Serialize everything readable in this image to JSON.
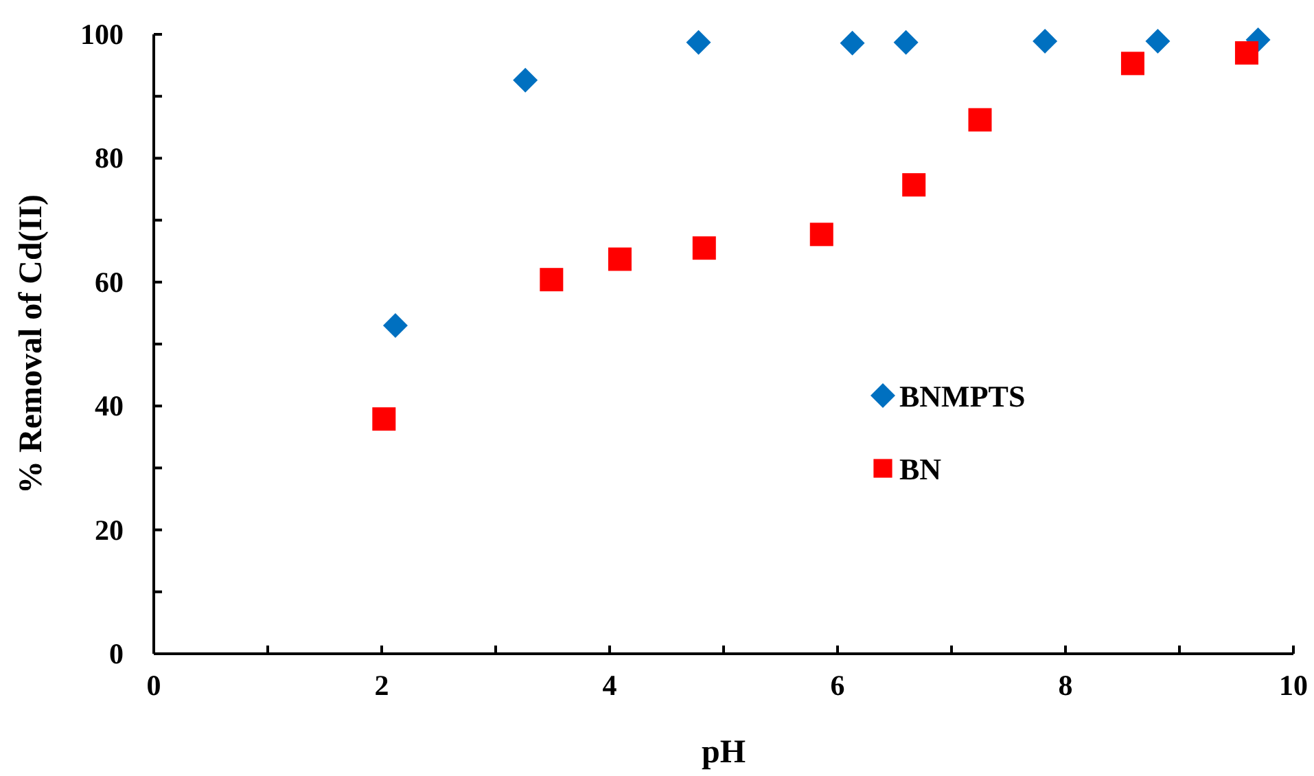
{
  "chart_data": {
    "type": "scatter",
    "xlabel": "pH",
    "ylabel": "% Removal of Cd(II)",
    "xlim": [
      0,
      10
    ],
    "xticks": [
      0,
      {
        "value": 1,
        "label": null
      },
      2,
      {
        "value": 3,
        "label": null
      },
      4,
      {
        "value": 5,
        "label": null
      },
      6,
      {
        "value": 7,
        "label": null
      },
      8,
      {
        "value": 9,
        "label": null
      },
      10
    ],
    "ylim": [
      0,
      100
    ],
    "yticks": [
      0,
      {
        "value": 10,
        "label": null
      },
      20,
      {
        "value": 30,
        "label": null
      },
      40,
      {
        "value": 50,
        "label": null
      },
      60,
      {
        "value": 70,
        "label": null
      },
      80,
      {
        "value": 90,
        "label": null
      },
      100
    ],
    "grid": false,
    "legend": "right",
    "series": [
      {
        "name": "BNMPTS",
        "color": "#0070c0",
        "marker": "diamond",
        "x": [
          2.12,
          3.26,
          4.78,
          6.13,
          6.6,
          7.82,
          8.81,
          9.69
        ],
        "values": [
          53.0,
          92.6,
          98.7,
          98.6,
          98.7,
          98.9,
          98.9,
          99.1
        ]
      },
      {
        "name": "BN",
        "color": "#ff0000",
        "marker": "square",
        "x": [
          2.02,
          3.49,
          4.09,
          4.83,
          5.86,
          6.67,
          7.25,
          8.59,
          9.59
        ],
        "values": [
          37.9,
          60.4,
          63.7,
          65.5,
          67.7,
          75.7,
          86.2,
          95.3,
          97.0
        ]
      }
    ]
  }
}
